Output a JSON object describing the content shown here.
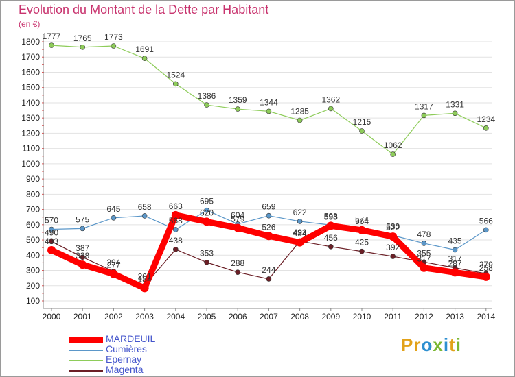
{
  "title": "Evolution du Montant de la Dette par Habitant",
  "unit": "(en €)",
  "logo": "Proxiti",
  "chart_data": {
    "type": "line",
    "x": [
      "2000",
      "2001",
      "2002",
      "2003",
      "2004",
      "2005",
      "2006",
      "2007",
      "2008",
      "2009",
      "2010",
      "2011",
      "2012",
      "2013",
      "2014"
    ],
    "ylim": [
      100,
      1800
    ],
    "yticks": [
      100,
      200,
      300,
      400,
      500,
      600,
      700,
      800,
      900,
      1000,
      1100,
      1200,
      1300,
      1400,
      1500,
      1600,
      1700,
      1800
    ],
    "grid": "horizontal",
    "legend_position": "bottom-left",
    "series": [
      {
        "name": "MARDEUIL",
        "color": "#ff0000",
        "values": [
          433,
          338,
          277,
          184,
          663,
          620,
          579,
          526,
          484,
          593,
          564,
          522,
          317,
          287,
          258
        ]
      },
      {
        "name": "Cumières",
        "color": "#5b97c9",
        "values": [
          570,
          575,
          645,
          658,
          568,
          695,
          604,
          659,
          622,
          598,
          574,
          530,
          478,
          435,
          566
        ]
      },
      {
        "name": "Epernay",
        "color": "#8ecc5a",
        "values": [
          1777,
          1765,
          1773,
          1691,
          1524,
          1386,
          1359,
          1344,
          1285,
          1362,
          1215,
          1062,
          1317,
          1331,
          1234
        ]
      },
      {
        "name": "Magenta",
        "color": "#6b1f26",
        "values": [
          490,
          387,
          294,
          201,
          438,
          353,
          288,
          244,
          492,
          456,
          425,
          392,
          355,
          317,
          279
        ]
      }
    ]
  }
}
